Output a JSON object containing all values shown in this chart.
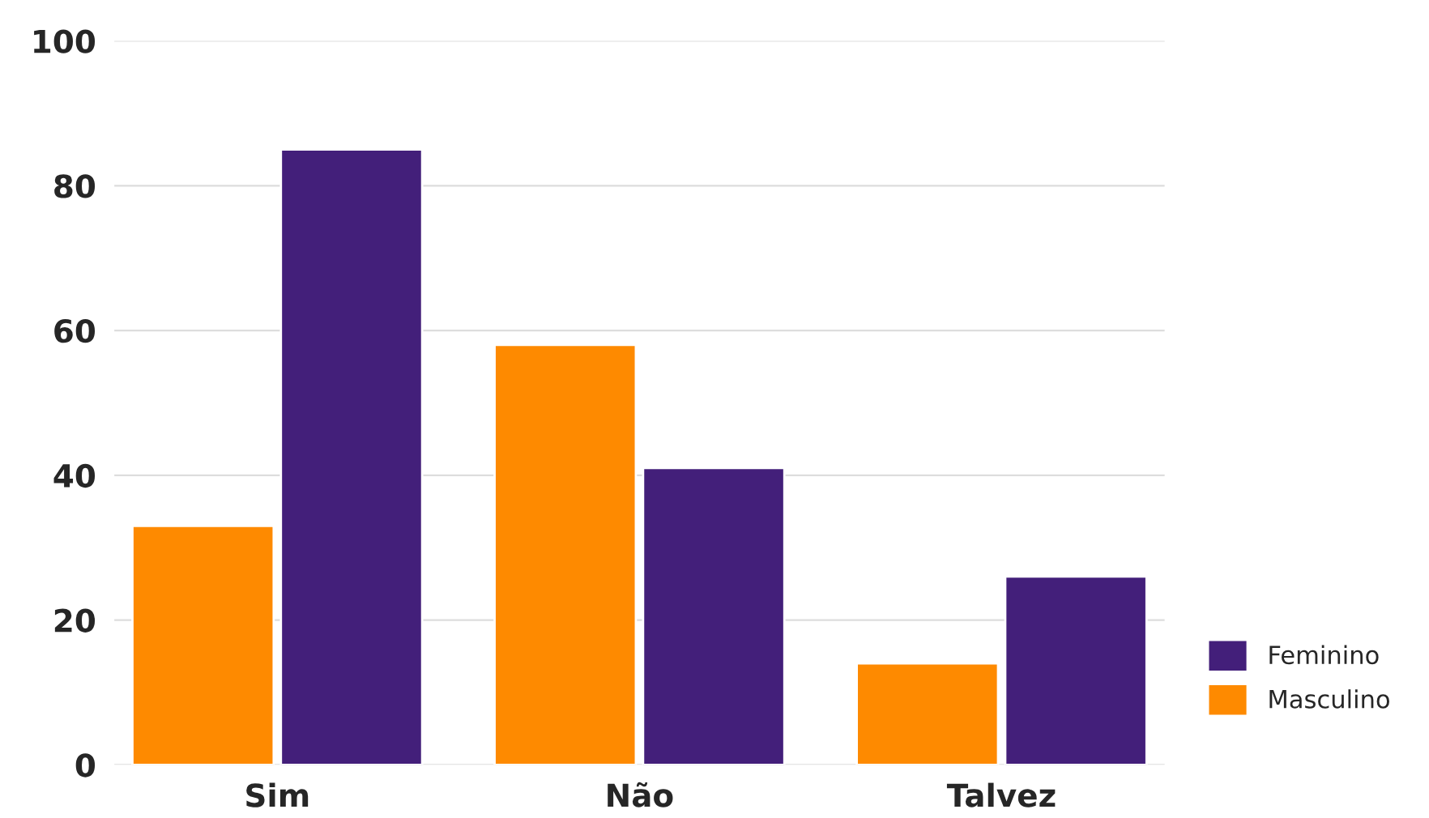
{
  "chart_data": {
    "type": "bar",
    "categories": [
      "Sim",
      "Não",
      "Talvez"
    ],
    "series": [
      {
        "name": "Masculino",
        "color": "#fe8a00",
        "values": [
          33,
          58,
          14
        ]
      },
      {
        "name": "Feminino",
        "color": "#431f7a",
        "values": [
          85,
          41,
          26
        ]
      }
    ],
    "ylim": [
      0,
      100
    ],
    "yticks": [
      0,
      20,
      40,
      60,
      80,
      100
    ],
    "grid": "y",
    "legend": "right"
  }
}
